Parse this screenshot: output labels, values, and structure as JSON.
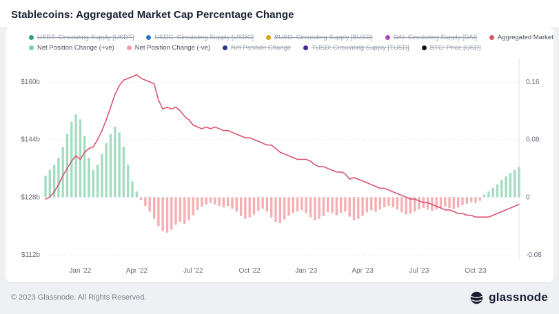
{
  "header": {
    "title": "Stablecoins: Aggregated Market Cap Percentage Change"
  },
  "footer": {
    "copyright": "© 2023 Glassnode. All Rights Reserved.",
    "brand": "glassnode"
  },
  "chart_data": {
    "type": "mixed",
    "title": "Stablecoins: Aggregated Market Cap Percentage Change",
    "grid": "horizontal-dotted",
    "legend": {
      "position": "top",
      "rows": [
        [
          {
            "id": "usdt-supply",
            "label": "USDT: Circulating Supply [USDT]",
            "color": "#26a17b",
            "struck": true
          },
          {
            "id": "usdc-supply",
            "label": "USDC: Circulating Supply [USDC]",
            "color": "#2775ca",
            "struck": true
          },
          {
            "id": "busd-supply",
            "label": "BUSD: Circulating Supply [BUSD]",
            "color": "#d9a70a",
            "struck": true
          },
          {
            "id": "dai-supply",
            "label": "DAI: Circulating Supply [DAI]",
            "color": "#ab47bc",
            "struck": true
          },
          {
            "id": "aggregated-market-cap",
            "label": "Aggregated Market Cap [USD]",
            "color": "#d9546e",
            "struck": false
          }
        ],
        [
          {
            "id": "net-position-positive",
            "label": "Net Position Change (+ve)",
            "color": "#7ccfa9",
            "struck": false
          },
          {
            "id": "net-position-negative",
            "label": "Net Position Change (-ve)",
            "color": "#f29ca6",
            "struck": false
          },
          {
            "id": "net-position",
            "label": "Net Position Change",
            "color": "#283593",
            "struck": true
          },
          {
            "id": "tusd-supply",
            "label": "TUSD: Circulating Supply [TUSD]",
            "color": "#4527a0",
            "struck": true
          },
          {
            "id": "btc-price",
            "label": "BTC: Price [USD]",
            "color": "#111111",
            "struck": true
          }
        ]
      ]
    },
    "y_left": {
      "min": 110.5,
      "max": 166.5,
      "unit": "USD billions",
      "ticks": [
        {
          "value": 160,
          "label": "$160b"
        },
        {
          "value": 144,
          "label": "$144b"
        },
        {
          "value": 128,
          "label": "$128b"
        },
        {
          "value": 112,
          "label": "$112b"
        }
      ]
    },
    "y_right": {
      "min": -0.0875,
      "max": 0.1925,
      "unit": "fraction",
      "ticks": [
        {
          "value": 0.16,
          "label": "0.16"
        },
        {
          "value": 0.08,
          "label": "0.08"
        },
        {
          "value": 0,
          "label": "0"
        },
        {
          "value": -0.08,
          "label": "-0.08"
        }
      ]
    },
    "x_ticks": [
      {
        "label": "Jan '22",
        "date": "2022-01-02"
      },
      {
        "label": "Apr '22",
        "date": "2022-04-03"
      },
      {
        "label": "Jul '22",
        "date": "2022-07-03"
      },
      {
        "label": "Oct '22",
        "date": "2022-10-02"
      },
      {
        "label": "Jan '23",
        "date": "2023-01-01"
      },
      {
        "label": "Apr '23",
        "date": "2023-04-02"
      },
      {
        "label": "Jul '23",
        "date": "2023-07-02"
      },
      {
        "label": "Oct '23",
        "date": "2023-10-01"
      }
    ],
    "dates": [
      "2021-11-07",
      "2021-11-14",
      "2021-11-21",
      "2021-11-28",
      "2021-12-05",
      "2021-12-12",
      "2021-12-19",
      "2021-12-26",
      "2022-01-02",
      "2022-01-09",
      "2022-01-16",
      "2022-01-23",
      "2022-01-30",
      "2022-02-06",
      "2022-02-13",
      "2022-02-20",
      "2022-02-27",
      "2022-03-06",
      "2022-03-13",
      "2022-03-20",
      "2022-03-27",
      "2022-04-03",
      "2022-04-10",
      "2022-04-17",
      "2022-04-24",
      "2022-05-01",
      "2022-05-08",
      "2022-05-15",
      "2022-05-22",
      "2022-05-29",
      "2022-06-05",
      "2022-06-12",
      "2022-06-19",
      "2022-06-26",
      "2022-07-03",
      "2022-07-10",
      "2022-07-17",
      "2022-07-24",
      "2022-07-31",
      "2022-08-07",
      "2022-08-14",
      "2022-08-21",
      "2022-08-28",
      "2022-09-04",
      "2022-09-11",
      "2022-09-18",
      "2022-09-25",
      "2022-10-02",
      "2022-10-09",
      "2022-10-16",
      "2022-10-23",
      "2022-10-30",
      "2022-11-06",
      "2022-11-13",
      "2022-11-20",
      "2022-11-27",
      "2022-12-04",
      "2022-12-11",
      "2022-12-18",
      "2022-12-25",
      "2023-01-01",
      "2023-01-08",
      "2023-01-15",
      "2023-01-22",
      "2023-01-29",
      "2023-02-05",
      "2023-02-12",
      "2023-02-19",
      "2023-02-26",
      "2023-03-05",
      "2023-03-12",
      "2023-03-19",
      "2023-03-26",
      "2023-04-02",
      "2023-04-09",
      "2023-04-16",
      "2023-04-23",
      "2023-04-30",
      "2023-05-07",
      "2023-05-14",
      "2023-05-21",
      "2023-05-28",
      "2023-06-04",
      "2023-06-11",
      "2023-06-18",
      "2023-06-25",
      "2023-07-02",
      "2023-07-09",
      "2023-07-16",
      "2023-07-23",
      "2023-07-30",
      "2023-08-06",
      "2023-08-13",
      "2023-08-20",
      "2023-08-27",
      "2023-09-03",
      "2023-09-10",
      "2023-09-17",
      "2023-09-24",
      "2023-10-01",
      "2023-10-08",
      "2023-10-15",
      "2023-10-22",
      "2023-10-29",
      "2023-11-05",
      "2023-11-12",
      "2023-11-19",
      "2023-11-26",
      "2023-12-03",
      "2023-12-10"
    ],
    "series": [
      {
        "name": "Aggregated Market Cap [USD]",
        "type": "line",
        "axis": "left",
        "color": "#d9546e",
        "values": [
          127.5,
          128,
          129.5,
          131.5,
          134,
          136,
          138,
          139.5,
          138.5,
          140.5,
          141.5,
          142,
          144,
          146.5,
          149.5,
          153,
          156.5,
          159,
          160.5,
          161,
          161.5,
          162,
          161,
          160.5,
          160,
          159.5,
          155,
          152.5,
          153,
          152.5,
          153,
          152,
          150.5,
          149.5,
          148,
          147.5,
          147,
          147.5,
          147,
          147.5,
          147,
          146.5,
          146.5,
          146,
          145.5,
          145,
          144.5,
          144.5,
          144,
          143.5,
          143,
          142.5,
          142.5,
          141.5,
          140.5,
          140,
          139.5,
          139,
          138.5,
          138.5,
          138.5,
          138,
          137,
          136.5,
          136.5,
          136,
          135.5,
          135,
          135,
          134.5,
          133,
          133.5,
          133,
          132.5,
          132,
          131.5,
          131,
          130.5,
          130.5,
          130,
          129.5,
          129,
          128.5,
          128,
          127.5,
          127.5,
          127,
          126.5,
          126.5,
          126,
          125.5,
          125,
          124.5,
          124.5,
          124,
          123.5,
          123.5,
          123,
          123,
          122.5,
          122.5,
          122.5,
          122.5,
          123,
          123.5,
          124,
          124.5,
          125,
          125.5,
          126
        ]
      },
      {
        "name": "Net Position Change",
        "type": "bar",
        "axis": "right",
        "color_positive": "#a3dcc0",
        "color_negative": "#f6aeb4",
        "values": [
          0.03,
          0.038,
          0.045,
          0.055,
          0.07,
          0.088,
          0.105,
          0.115,
          0.108,
          0.085,
          0.055,
          0.038,
          0.045,
          0.06,
          0.075,
          0.088,
          0.098,
          0.09,
          0.07,
          0.045,
          0.022,
          0.008,
          -0.004,
          -0.012,
          -0.02,
          -0.03,
          -0.04,
          -0.047,
          -0.049,
          -0.045,
          -0.038,
          -0.034,
          -0.037,
          -0.032,
          -0.025,
          -0.018,
          -0.013,
          -0.01,
          -0.008,
          -0.01,
          -0.012,
          -0.014,
          -0.012,
          -0.016,
          -0.02,
          -0.026,
          -0.03,
          -0.028,
          -0.024,
          -0.019,
          -0.016,
          -0.02,
          -0.028,
          -0.034,
          -0.036,
          -0.031,
          -0.026,
          -0.022,
          -0.02,
          -0.018,
          -0.022,
          -0.028,
          -0.032,
          -0.03,
          -0.026,
          -0.021,
          -0.022,
          -0.025,
          -0.022,
          -0.02,
          -0.027,
          -0.032,
          -0.03,
          -0.026,
          -0.021,
          -0.018,
          -0.02,
          -0.017,
          -0.014,
          -0.012,
          -0.014,
          -0.017,
          -0.021,
          -0.024,
          -0.023,
          -0.02,
          -0.017,
          -0.015,
          -0.017,
          -0.019,
          -0.017,
          -0.015,
          -0.013,
          -0.015,
          -0.016,
          -0.014,
          -0.011,
          -0.009,
          -0.007,
          -0.008,
          -0.005,
          0.004,
          0.008,
          0.013,
          0.018,
          0.024,
          0.029,
          0.034,
          0.038,
          0.042
        ]
      }
    ]
  }
}
